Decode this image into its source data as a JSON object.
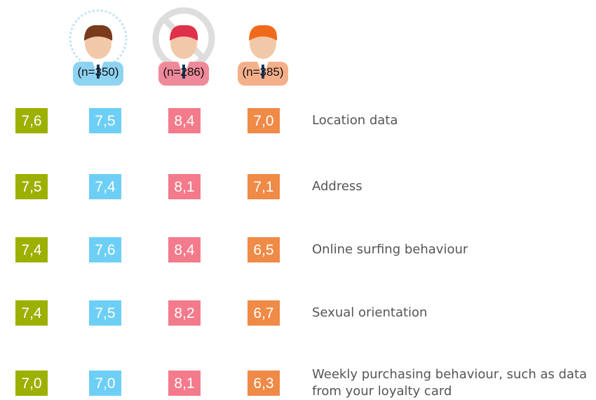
{
  "header": {
    "groups": [
      {
        "n": "(n=350)"
      },
      {
        "n": "(n=286)"
      },
      {
        "n": "(n=385)"
      }
    ]
  },
  "table": {
    "rows": [
      {
        "values": [
          "7,6",
          "7,5",
          "8,4",
          "7,0"
        ],
        "label": "Location data"
      },
      {
        "values": [
          "7,5",
          "7,4",
          "8,1",
          "7,1"
        ],
        "label": "Address"
      },
      {
        "values": [
          "7,4",
          "7,6",
          "8,4",
          "6,5"
        ],
        "label": "Online surfing behaviour"
      },
      {
        "values": [
          "7,4",
          "7,5",
          "8,2",
          "6,7"
        ],
        "label": "Sexual orientation"
      },
      {
        "values": [
          "7,0",
          "7,0",
          "8,1",
          "6,3"
        ],
        "label": "Weekly purchasing behaviour, such as data from your loyalty card"
      }
    ]
  }
}
